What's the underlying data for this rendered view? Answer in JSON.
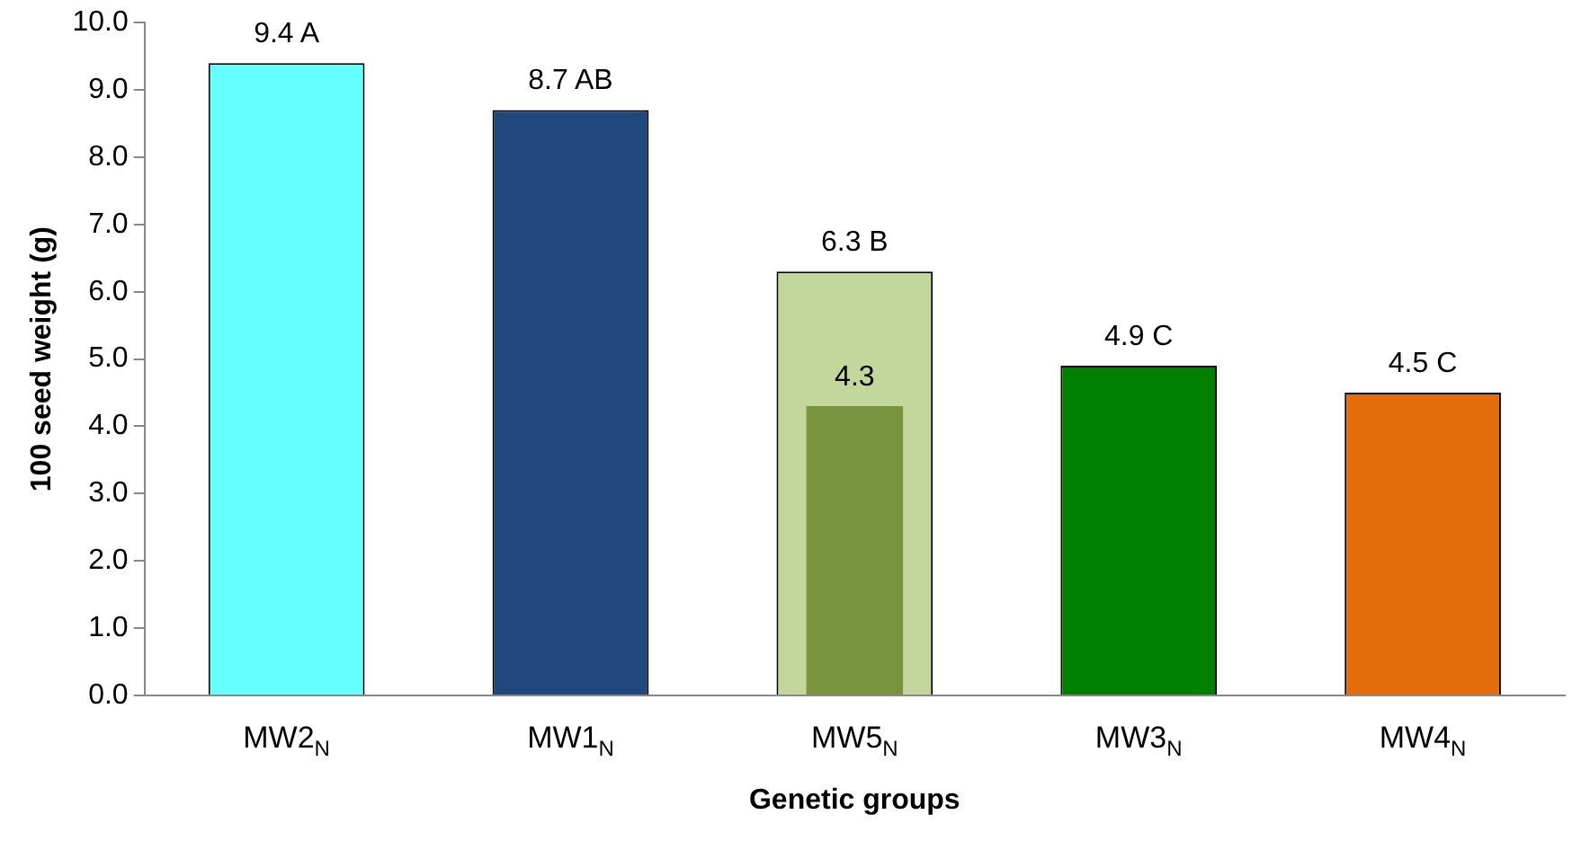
{
  "chart_data": {
    "type": "bar",
    "xlabel": "Genetic groups",
    "ylabel": "100 seed weight (g)",
    "categories": [
      "MW2$_{N}$",
      "MW1$_{N}$",
      "MW5$_{N}$",
      "MW3$_{N}$",
      "MW4$_{N}$"
    ],
    "series": [
      {
        "colors": [
          "#66ffff",
          "#1f497d",
          "#c3d69b",
          "#008000",
          "#e46c0a"
        ],
        "values": [
          9.4,
          8.7,
          6.3,
          4.9,
          4.5
        ],
        "value_labels": [
          "9.4 A",
          "8.7 AB",
          "6.3 B",
          "4.9 C",
          "4.5 C"
        ]
      },
      {
        "colors": [
          "#77933c",
          "#77933c",
          "#77933c",
          "#77933c",
          "#77933c"
        ],
        "values": [
          null,
          null,
          4.3,
          null,
          null
        ],
        "value_labels": [
          null,
          null,
          "4.3",
          null,
          null
        ]
      }
    ],
    "ylim": [
      0,
      10
    ],
    "yticks": [
      {
        "value": 0,
        "label": "0.0"
      },
      {
        "value": 1,
        "label": "1.0"
      },
      {
        "value": 2,
        "label": "2.0"
      },
      {
        "value": 3,
        "label": "3.0"
      },
      {
        "value": 4,
        "label": "4.0"
      },
      {
        "value": 5,
        "label": "5.0"
      },
      {
        "value": 6,
        "label": "6.0"
      },
      {
        "value": 7,
        "label": "7.0"
      },
      {
        "value": 8,
        "label": "8.0"
      },
      {
        "value": 9,
        "label": "9.0"
      },
      {
        "value": 10,
        "label": "10.0"
      }
    ],
    "grid": false,
    "legend": false
  }
}
